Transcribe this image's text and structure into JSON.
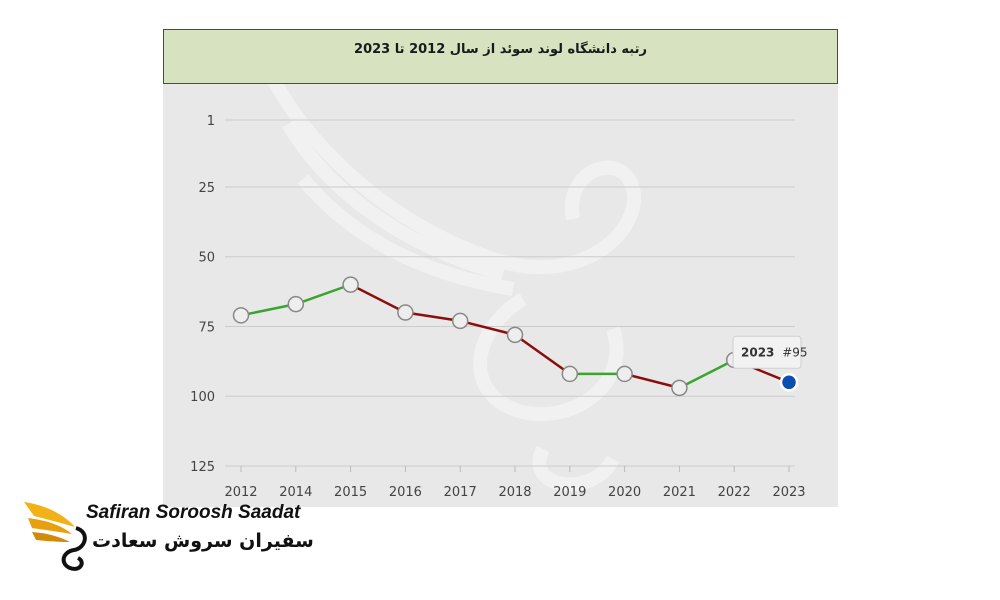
{
  "chart_data": {
    "type": "line",
    "title": "رتبه دانشگاه لوند سوئد از سال 2012 تا 2023",
    "categories": [
      "2012",
      "2014",
      "2015",
      "2016",
      "2017",
      "2018",
      "2019",
      "2020",
      "2021",
      "2022",
      "2023"
    ],
    "values": [
      71,
      67,
      60,
      70,
      73,
      78,
      92,
      92,
      97,
      87,
      95
    ],
    "y_ticks": [
      1,
      25,
      50,
      75,
      100,
      125
    ],
    "y_inverted": true,
    "ylim": [
      1,
      125
    ],
    "grid": true,
    "tooltip": {
      "year": "2023",
      "rank": "#95"
    },
    "colors": {
      "improve": "#3aa52e",
      "decline": "#8b0d0d",
      "marker_fill": "#eeeeee",
      "marker_stroke": "#888888",
      "highlight": "#0a4fb0",
      "title_bg": "#d6e2c0",
      "plot_bg": "#e8e8e8"
    }
  },
  "logo": {
    "en": "Safiran Soroosh Saadat",
    "fa": "سفیران سروش سعادت"
  }
}
